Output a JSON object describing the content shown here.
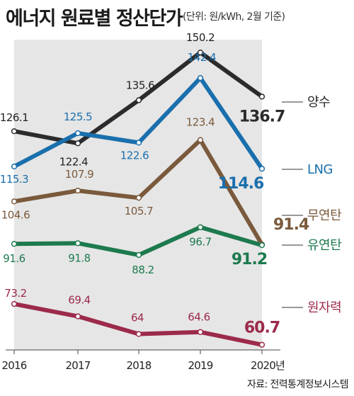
{
  "header": {
    "title": "에너지 원료별 정산단가",
    "subtitle": "(단위: 원/kWh, 2월 기준)"
  },
  "footer": {
    "source": "자료: 전력통계정보시스템"
  },
  "chart_data": {
    "type": "line",
    "x": [
      "2016",
      "2017",
      "2018",
      "2019",
      "2020"
    ],
    "x_suffix": "년",
    "ylim": [
      50,
      155
    ],
    "grid": false,
    "shaded_band": [
      "2016",
      "2020"
    ],
    "legend": "right-end labels",
    "series": [
      {
        "name": "양수",
        "color": "#2b2b2b",
        "values": [
          126.1,
          122.4,
          135.6,
          150.2,
          136.7
        ]
      },
      {
        "name": "LNG",
        "color": "#1a6fad",
        "values": [
          115.3,
          125.5,
          122.6,
          142.4,
          114.6
        ]
      },
      {
        "name": "무연탄",
        "color": "#7a5a3c",
        "values": [
          104.6,
          107.9,
          105.7,
          123.4,
          91.4
        ]
      },
      {
        "name": "유연탄",
        "color": "#1d7a4e",
        "values": [
          91.6,
          91.8,
          88.2,
          96.7,
          91.2
        ]
      },
      {
        "name": "원자력",
        "color": "#9c2a4a",
        "values": [
          73.2,
          69.4,
          64,
          64.6,
          60.7
        ]
      }
    ]
  }
}
